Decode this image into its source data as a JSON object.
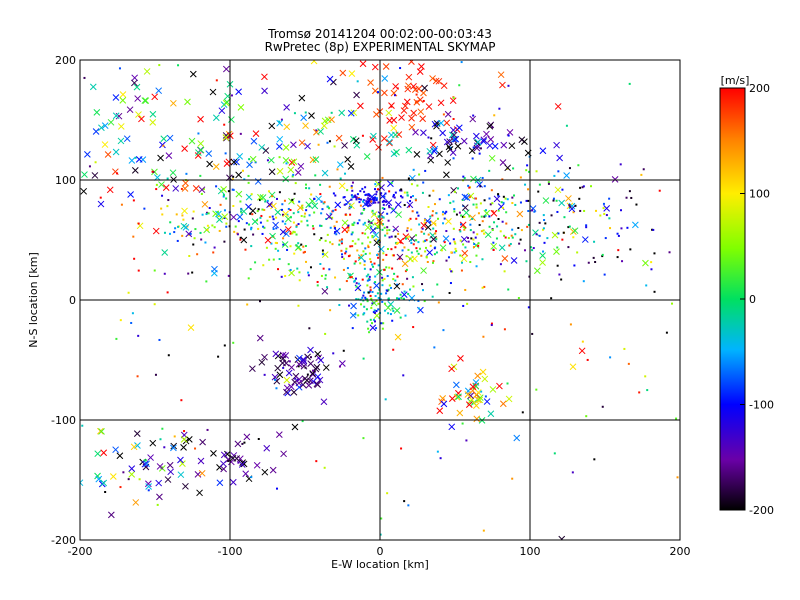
{
  "chart_data": {
    "type": "scatter",
    "title": "Tromsø 20141204 00:02:00-00:03:43",
    "subtitle": "RwPretec (8p) EXPERIMENTAL SKYMAP",
    "xlabel": "E-W location [km]",
    "ylabel": "N-S location [km]",
    "xlim": [
      -200,
      200
    ],
    "ylim": [
      -200,
      200
    ],
    "x_ticks": [
      "-200",
      "-100",
      "0",
      "100",
      "200"
    ],
    "y_ticks": [
      "-200",
      "-100",
      "0",
      "100",
      "200"
    ],
    "grid": true,
    "colorbar": {
      "label": "[m/s]",
      "range": [
        -200,
        200
      ],
      "ticks": [
        "200",
        "100",
        "0",
        "-100",
        "-200"
      ],
      "colormap": "rainbow"
    },
    "markers": [
      "x",
      "dot"
    ],
    "clusters": [
      {
        "x": -5,
        "y": 85,
        "spread": [
          12,
          4
        ],
        "n": 90,
        "v": -110,
        "vs": 15,
        "m": "dot"
      },
      {
        "x": 0,
        "y": 50,
        "spread": [
          50,
          22
        ],
        "n": 420,
        "v": 40,
        "vs": 110,
        "m": "dot"
      },
      {
        "x": -80,
        "y": 70,
        "spread": [
          40,
          18
        ],
        "n": 200,
        "v": 0,
        "vs": 120,
        "m": "dot"
      },
      {
        "x": 70,
        "y": 70,
        "spread": [
          45,
          22
        ],
        "n": 180,
        "v": -20,
        "vs": 120,
        "m": "dot"
      },
      {
        "x": 0,
        "y": 0,
        "spread": [
          12,
          12
        ],
        "n": 120,
        "v": -30,
        "vs": 50,
        "m": "dot"
      },
      {
        "x": 20,
        "y": 170,
        "spread": [
          18,
          18
        ],
        "n": 60,
        "v": 190,
        "vs": 15,
        "m": "x"
      },
      {
        "x": 60,
        "y": 130,
        "spread": [
          22,
          10
        ],
        "n": 60,
        "v": -140,
        "vs": 60,
        "m": "x"
      },
      {
        "x": -60,
        "y": 140,
        "spread": [
          60,
          35
        ],
        "n": 160,
        "v": 0,
        "vs": 130,
        "m": "x"
      },
      {
        "x": -130,
        "y": 120,
        "spread": [
          40,
          40
        ],
        "n": 60,
        "v": 0,
        "vs": 140,
        "m": "x"
      },
      {
        "x": -55,
        "y": -60,
        "spread": [
          12,
          10
        ],
        "n": 70,
        "v": -160,
        "vs": 30,
        "m": "x"
      },
      {
        "x": 60,
        "y": -80,
        "spread": [
          10,
          12
        ],
        "n": 45,
        "v": 90,
        "vs": 120,
        "m": "x"
      },
      {
        "x": -105,
        "y": -135,
        "spread": [
          25,
          12
        ],
        "n": 50,
        "v": -180,
        "vs": 40,
        "m": "x"
      },
      {
        "x": -160,
        "y": -140,
        "spread": [
          22,
          18
        ],
        "n": 40,
        "v": -40,
        "vs": 120,
        "m": "x"
      },
      {
        "x": 140,
        "y": 60,
        "spread": [
          35,
          25
        ],
        "n": 70,
        "v": -140,
        "vs": 80,
        "m": "dot"
      },
      {
        "x": -170,
        "y": 140,
        "spread": [
          20,
          30
        ],
        "n": 30,
        "v": 0,
        "vs": 140,
        "m": "x"
      },
      {
        "x": 0,
        "y": 0,
        "spread": [
          130,
          130
        ],
        "n": 260,
        "v": 0,
        "vs": 150,
        "m": "dot"
      }
    ]
  }
}
